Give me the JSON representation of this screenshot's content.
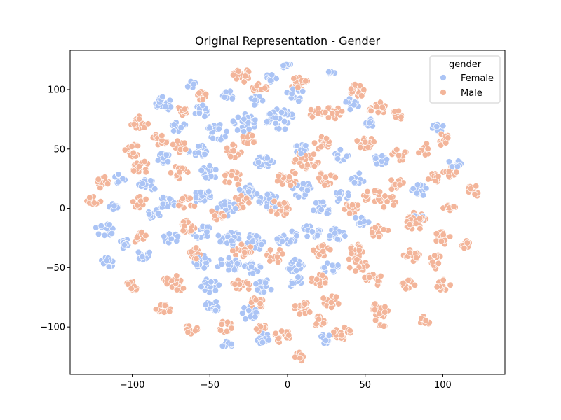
{
  "chart_data": {
    "type": "scatter",
    "title": "Original Representation - Gender",
    "xlabel": "",
    "ylabel": "",
    "xlim": [
      -140,
      140
    ],
    "ylim": [
      -140,
      133
    ],
    "xticks": [
      -100,
      -50,
      0,
      50,
      100
    ],
    "yticks": [
      -100,
      -50,
      0,
      50,
      100
    ],
    "grid": false,
    "legend": {
      "title": "gender",
      "placement": "top-right"
    },
    "series": [
      {
        "name": "Female",
        "color": "#abc4f5",
        "clusters": [
          {
            "cx": -80,
            "cy": 88,
            "r": 6,
            "n": 18
          },
          {
            "cx": -70,
            "cy": 68,
            "r": 5,
            "n": 14
          },
          {
            "cx": -62,
            "cy": 104,
            "r": 3,
            "n": 8
          },
          {
            "cx": -55,
            "cy": 82,
            "r": 5,
            "n": 12
          },
          {
            "cx": -45,
            "cy": 64,
            "r": 7,
            "n": 20
          },
          {
            "cx": -38,
            "cy": 95,
            "r": 4,
            "n": 10
          },
          {
            "cx": -28,
            "cy": 72,
            "r": 8,
            "n": 24
          },
          {
            "cx": -20,
            "cy": 90,
            "r": 5,
            "n": 12
          },
          {
            "cx": -10,
            "cy": 110,
            "r": 4,
            "n": 10
          },
          {
            "cx": -5,
            "cy": 75,
            "r": 9,
            "n": 30
          },
          {
            "cx": 5,
            "cy": 95,
            "r": 6,
            "n": 18
          },
          {
            "cx": 0,
            "cy": 120,
            "r": 3,
            "n": 8
          },
          {
            "cx": 28,
            "cy": 114,
            "r": 3,
            "n": 8
          },
          {
            "cx": 42,
            "cy": 88,
            "r": 5,
            "n": 12
          },
          {
            "cx": 52,
            "cy": 72,
            "r": 4,
            "n": 10
          },
          {
            "cx": 97,
            "cy": 68,
            "r": 4,
            "n": 10
          },
          {
            "cx": -80,
            "cy": 42,
            "r": 5,
            "n": 14
          },
          {
            "cx": -58,
            "cy": 48,
            "r": 6,
            "n": 16
          },
          {
            "cx": -50,
            "cy": 30,
            "r": 6,
            "n": 16
          },
          {
            "cx": -15,
            "cy": 40,
            "r": 6,
            "n": 16
          },
          {
            "cx": 8,
            "cy": 50,
            "r": 5,
            "n": 12
          },
          {
            "cx": 35,
            "cy": 45,
            "r": 5,
            "n": 12
          },
          {
            "cx": 45,
            "cy": 25,
            "r": 5,
            "n": 12
          },
          {
            "cx": 60,
            "cy": 40,
            "r": 5,
            "n": 12
          },
          {
            "cx": 85,
            "cy": 15,
            "r": 5,
            "n": 14
          },
          {
            "cx": 108,
            "cy": 38,
            "r": 5,
            "n": 14
          },
          {
            "cx": -108,
            "cy": 25,
            "r": 4,
            "n": 10
          },
          {
            "cx": -90,
            "cy": 20,
            "r": 6,
            "n": 16
          },
          {
            "cx": -78,
            "cy": 5,
            "r": 6,
            "n": 16
          },
          {
            "cx": -55,
            "cy": 10,
            "r": 6,
            "n": 18
          },
          {
            "cx": -40,
            "cy": 0,
            "r": 7,
            "n": 20
          },
          {
            "cx": -25,
            "cy": 15,
            "r": 6,
            "n": 16
          },
          {
            "cx": -12,
            "cy": 5,
            "r": 7,
            "n": 20
          },
          {
            "cx": 10,
            "cy": 15,
            "r": 7,
            "n": 20
          },
          {
            "cx": 22,
            "cy": 0,
            "r": 6,
            "n": 16
          },
          {
            "cx": 35,
            "cy": 10,
            "r": 5,
            "n": 12
          },
          {
            "cx": 48,
            "cy": -10,
            "r": 5,
            "n": 12
          },
          {
            "cx": 85,
            "cy": -8,
            "r": 4,
            "n": 10
          },
          {
            "cx": -118,
            "cy": -18,
            "r": 6,
            "n": 16
          },
          {
            "cx": -112,
            "cy": 2,
            "r": 3,
            "n": 8
          },
          {
            "cx": -105,
            "cy": -30,
            "r": 4,
            "n": 10
          },
          {
            "cx": -85,
            "cy": -5,
            "r": 5,
            "n": 12
          },
          {
            "cx": -75,
            "cy": -25,
            "r": 5,
            "n": 12
          },
          {
            "cx": -55,
            "cy": -20,
            "r": 6,
            "n": 16
          },
          {
            "cx": -38,
            "cy": -25,
            "r": 7,
            "n": 20
          },
          {
            "cx": -20,
            "cy": -28,
            "r": 7,
            "n": 20
          },
          {
            "cx": 0,
            "cy": -25,
            "r": 7,
            "n": 20
          },
          {
            "cx": 15,
            "cy": -20,
            "r": 6,
            "n": 16
          },
          {
            "cx": 32,
            "cy": -22,
            "r": 6,
            "n": 16
          },
          {
            "cx": -115,
            "cy": -45,
            "r": 5,
            "n": 12
          },
          {
            "cx": -92,
            "cy": -40,
            "r": 5,
            "n": 12
          },
          {
            "cx": -55,
            "cy": -45,
            "r": 6,
            "n": 16
          },
          {
            "cx": -38,
            "cy": -48,
            "r": 7,
            "n": 20
          },
          {
            "cx": -22,
            "cy": -50,
            "r": 6,
            "n": 16
          },
          {
            "cx": 5,
            "cy": -48,
            "r": 6,
            "n": 16
          },
          {
            "cx": 28,
            "cy": -50,
            "r": 5,
            "n": 12
          },
          {
            "cx": -50,
            "cy": -65,
            "r": 6,
            "n": 16
          },
          {
            "cx": -15,
            "cy": -65,
            "r": 6,
            "n": 16
          },
          {
            "cx": 5,
            "cy": -62,
            "r": 5,
            "n": 12
          },
          {
            "cx": -48,
            "cy": -82,
            "r": 5,
            "n": 14
          },
          {
            "cx": -25,
            "cy": -88,
            "r": 6,
            "n": 16
          },
          {
            "cx": -38,
            "cy": -115,
            "r": 4,
            "n": 10
          },
          {
            "cx": -15,
            "cy": -110,
            "r": 5,
            "n": 12
          },
          {
            "cx": 25,
            "cy": -110,
            "r": 4,
            "n": 10
          }
        ]
      },
      {
        "name": "Male",
        "color": "#f3b59a",
        "clusters": [
          {
            "cx": -95,
            "cy": 72,
            "r": 6,
            "n": 16
          },
          {
            "cx": -68,
            "cy": 82,
            "r": 4,
            "n": 10
          },
          {
            "cx": -55,
            "cy": 95,
            "r": 4,
            "n": 10
          },
          {
            "cx": -30,
            "cy": 112,
            "r": 6,
            "n": 18
          },
          {
            "cx": -18,
            "cy": 100,
            "r": 5,
            "n": 14
          },
          {
            "cx": 8,
            "cy": 105,
            "r": 6,
            "n": 18
          },
          {
            "cx": 18,
            "cy": 80,
            "r": 5,
            "n": 14
          },
          {
            "cx": 30,
            "cy": 80,
            "r": 6,
            "n": 16
          },
          {
            "cx": 45,
            "cy": 100,
            "r": 6,
            "n": 16
          },
          {
            "cx": 58,
            "cy": 85,
            "r": 6,
            "n": 16
          },
          {
            "cx": 70,
            "cy": 78,
            "r": 5,
            "n": 12
          },
          {
            "cx": -100,
            "cy": 48,
            "r": 6,
            "n": 16
          },
          {
            "cx": -82,
            "cy": 58,
            "r": 5,
            "n": 14
          },
          {
            "cx": -70,
            "cy": 52,
            "r": 5,
            "n": 12
          },
          {
            "cx": -35,
            "cy": 48,
            "r": 6,
            "n": 16
          },
          {
            "cx": -25,
            "cy": 58,
            "r": 5,
            "n": 12
          },
          {
            "cx": 12,
            "cy": 40,
            "r": 8,
            "n": 26
          },
          {
            "cx": 22,
            "cy": 55,
            "r": 6,
            "n": 16
          },
          {
            "cx": 50,
            "cy": 55,
            "r": 6,
            "n": 16
          },
          {
            "cx": 72,
            "cy": 45,
            "r": 5,
            "n": 12
          },
          {
            "cx": 88,
            "cy": 50,
            "r": 5,
            "n": 12
          },
          {
            "cx": 100,
            "cy": 58,
            "r": 5,
            "n": 12
          },
          {
            "cx": -120,
            "cy": 22,
            "r": 5,
            "n": 14
          },
          {
            "cx": -95,
            "cy": 35,
            "r": 6,
            "n": 16
          },
          {
            "cx": -70,
            "cy": 30,
            "r": 6,
            "n": 16
          },
          {
            "cx": -35,
            "cy": 25,
            "r": 6,
            "n": 16
          },
          {
            "cx": 0,
            "cy": 25,
            "r": 7,
            "n": 20
          },
          {
            "cx": 25,
            "cy": 25,
            "r": 6,
            "n": 16
          },
          {
            "cx": 55,
            "cy": 10,
            "r": 6,
            "n": 16
          },
          {
            "cx": 70,
            "cy": 20,
            "r": 5,
            "n": 12
          },
          {
            "cx": 95,
            "cy": 25,
            "r": 5,
            "n": 12
          },
          {
            "cx": 105,
            "cy": 30,
            "r": 5,
            "n": 12
          },
          {
            "cx": 120,
            "cy": 15,
            "r": 5,
            "n": 12
          },
          {
            "cx": -125,
            "cy": 5,
            "r": 5,
            "n": 12
          },
          {
            "cx": -95,
            "cy": 5,
            "r": 5,
            "n": 12
          },
          {
            "cx": -65,
            "cy": 5,
            "r": 6,
            "n": 16
          },
          {
            "cx": -30,
            "cy": 5,
            "r": 6,
            "n": 16
          },
          {
            "cx": -5,
            "cy": 0,
            "r": 7,
            "n": 20
          },
          {
            "cx": 40,
            "cy": 0,
            "r": 6,
            "n": 16
          },
          {
            "cx": 65,
            "cy": 5,
            "r": 6,
            "n": 16
          },
          {
            "cx": 105,
            "cy": 0,
            "r": 5,
            "n": 12
          },
          {
            "cx": -95,
            "cy": -25,
            "r": 5,
            "n": 14
          },
          {
            "cx": -65,
            "cy": -15,
            "r": 6,
            "n": 16
          },
          {
            "cx": -45,
            "cy": -5,
            "r": 5,
            "n": 12
          },
          {
            "cx": -30,
            "cy": -35,
            "r": 7,
            "n": 20
          },
          {
            "cx": -8,
            "cy": -40,
            "r": 6,
            "n": 16
          },
          {
            "cx": 22,
            "cy": -35,
            "r": 6,
            "n": 16
          },
          {
            "cx": 45,
            "cy": -35,
            "r": 6,
            "n": 16
          },
          {
            "cx": 60,
            "cy": -20,
            "r": 6,
            "n": 16
          },
          {
            "cx": 82,
            "cy": -10,
            "r": 8,
            "n": 24
          },
          {
            "cx": 100,
            "cy": -25,
            "r": 6,
            "n": 16
          },
          {
            "cx": -100,
            "cy": -65,
            "r": 5,
            "n": 14
          },
          {
            "cx": -75,
            "cy": -60,
            "r": 5,
            "n": 14
          },
          {
            "cx": -60,
            "cy": -38,
            "r": 5,
            "n": 12
          },
          {
            "cx": -30,
            "cy": -65,
            "r": 6,
            "n": 16
          },
          {
            "cx": 20,
            "cy": -60,
            "r": 6,
            "n": 16
          },
          {
            "cx": 45,
            "cy": -45,
            "r": 8,
            "n": 24
          },
          {
            "cx": 55,
            "cy": -60,
            "r": 6,
            "n": 16
          },
          {
            "cx": 80,
            "cy": -40,
            "r": 6,
            "n": 16
          },
          {
            "cx": 95,
            "cy": -45,
            "r": 6,
            "n": 16
          },
          {
            "cx": 115,
            "cy": -30,
            "r": 4,
            "n": 10
          },
          {
            "cx": -80,
            "cy": -85,
            "r": 5,
            "n": 12
          },
          {
            "cx": -70,
            "cy": -65,
            "r": 5,
            "n": 12
          },
          {
            "cx": -20,
            "cy": -80,
            "r": 5,
            "n": 12
          },
          {
            "cx": 10,
            "cy": -85,
            "r": 6,
            "n": 16
          },
          {
            "cx": 28,
            "cy": -78,
            "r": 6,
            "n": 16
          },
          {
            "cx": 60,
            "cy": -85,
            "r": 6,
            "n": 16
          },
          {
            "cx": 78,
            "cy": -65,
            "r": 5,
            "n": 12
          },
          {
            "cx": 100,
            "cy": -65,
            "r": 5,
            "n": 12
          },
          {
            "cx": -62,
            "cy": -102,
            "r": 4,
            "n": 10
          },
          {
            "cx": -40,
            "cy": -100,
            "r": 5,
            "n": 12
          },
          {
            "cx": -18,
            "cy": -100,
            "r": 4,
            "n": 10
          },
          {
            "cx": -3,
            "cy": -108,
            "r": 6,
            "n": 16
          },
          {
            "cx": 20,
            "cy": -95,
            "r": 5,
            "n": 12
          },
          {
            "cx": 35,
            "cy": -105,
            "r": 6,
            "n": 16
          },
          {
            "cx": 60,
            "cy": -95,
            "r": 5,
            "n": 12
          },
          {
            "cx": 8,
            "cy": -125,
            "r": 4,
            "n": 10
          },
          {
            "cx": 88,
            "cy": -95,
            "r": 4,
            "n": 8
          }
        ]
      }
    ]
  }
}
